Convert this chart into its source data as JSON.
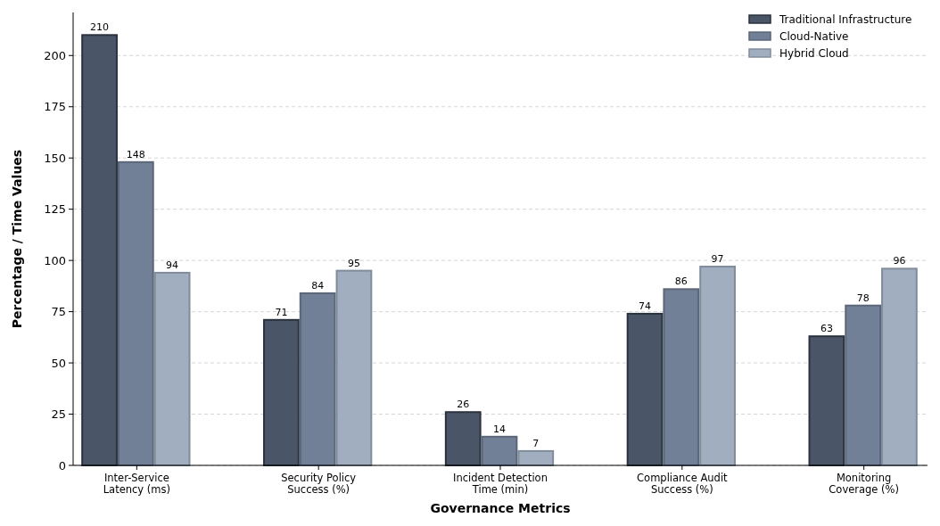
{
  "chart_data": {
    "type": "bar",
    "xlabel": "Governance Metrics",
    "ylabel": "Percentage / Time Values",
    "categories": [
      "Inter-Service\nLatency (ms)",
      "Security Policy\nSuccess (%)",
      "Incident Detection\nTime (min)",
      "Compliance Audit\nSuccess (%)",
      "Monitoring\nCoverage (%)"
    ],
    "series": [
      {
        "name": "Traditional Infrastructure",
        "color": "#4a5568",
        "values": [
          210,
          71,
          26,
          74,
          63
        ]
      },
      {
        "name": "Cloud-Native",
        "color": "#718096",
        "values": [
          148,
          84,
          14,
          86,
          78
        ]
      },
      {
        "name": "Hybrid Cloud",
        "color": "#a0aec0",
        "values": [
          94,
          95,
          7,
          97,
          96
        ]
      }
    ],
    "ylim": [
      0,
      221
    ],
    "yticks": [
      0,
      25,
      50,
      75,
      100,
      125,
      150,
      175,
      200
    ],
    "grid": "y",
    "legend": "top right",
    "data_labels": true
  }
}
